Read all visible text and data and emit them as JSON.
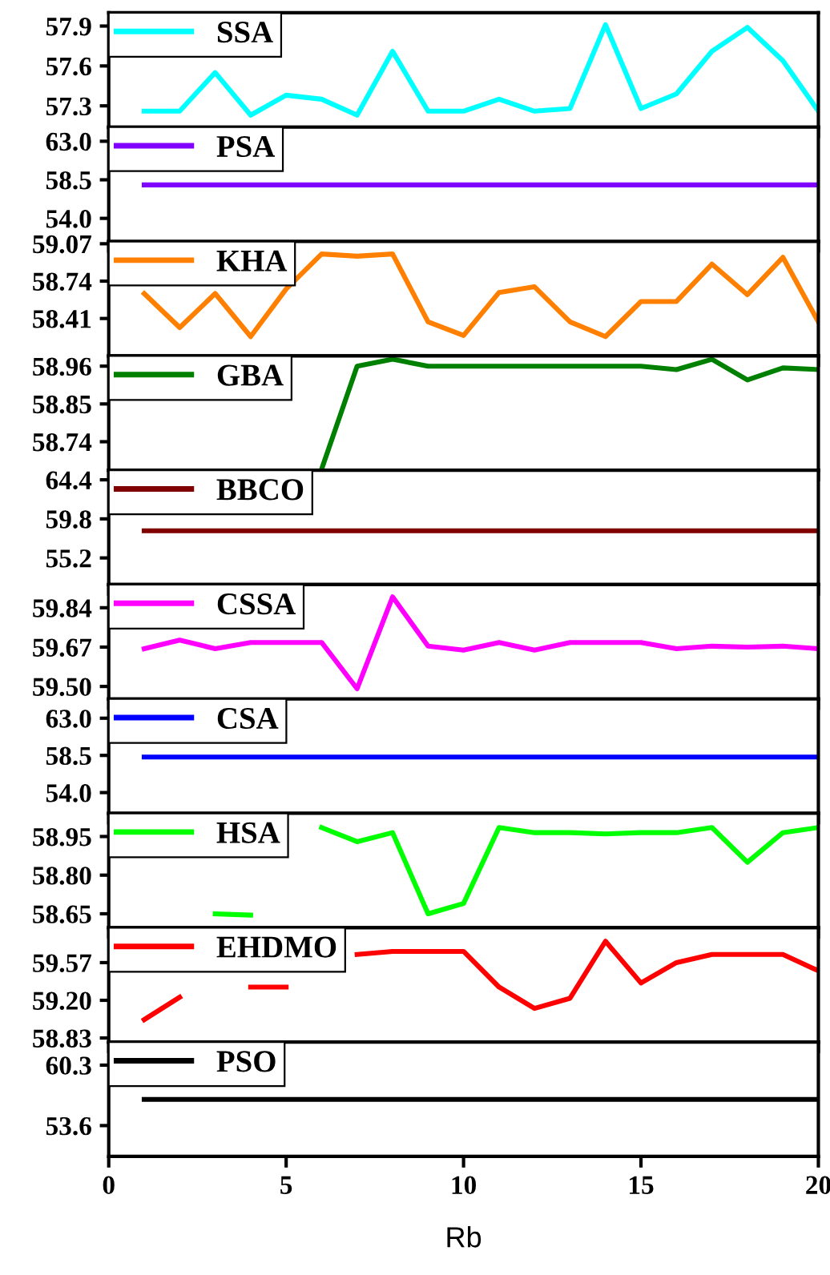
{
  "chart_data": [
    {
      "type": "line",
      "x": [
        1,
        2,
        3,
        4,
        5,
        6,
        7,
        8,
        9,
        10,
        11,
        12,
        13,
        14,
        15,
        16,
        17,
        18,
        19,
        20
      ],
      "xlim": [
        0,
        20
      ],
      "xticks": [
        0,
        5,
        10,
        15,
        20
      ],
      "ylim": [
        57.14,
        58.0
      ],
      "yticks": [
        57.3,
        57.6,
        57.9
      ],
      "tick_labels": "y",
      "legend": "top left",
      "series": [
        {
          "name": "SSA",
          "color": "#00ffff",
          "values": [
            57.26,
            57.26,
            57.55,
            57.23,
            57.38,
            57.35,
            57.23,
            57.71,
            57.26,
            57.26,
            57.35,
            57.26,
            57.28,
            57.91,
            57.28,
            57.39,
            57.71,
            57.89,
            57.64,
            57.26
          ]
        }
      ]
    },
    {
      "type": "line",
      "x": [
        1,
        2,
        3,
        4,
        5,
        6,
        7,
        8,
        9,
        10,
        11,
        12,
        13,
        14,
        15,
        16,
        17,
        18,
        19,
        20
      ],
      "xlim": [
        0,
        20
      ],
      "xticks": [
        0,
        5,
        10,
        15,
        20
      ],
      "ylim": [
        51.3,
        64.65
      ],
      "yticks": [
        {
          "value": 54,
          "label": "54.0"
        },
        58.5,
        {
          "value": 63,
          "label": "63.0"
        }
      ],
      "tick_labels": "y",
      "legend": "top left",
      "series": [
        {
          "name": "PSA",
          "color": "#8000ff",
          "values": [
            57.9,
            57.9,
            57.9,
            57.9,
            57.9,
            57.9,
            57.9,
            57.9,
            57.9,
            57.9,
            57.9,
            57.9,
            57.9,
            57.9,
            57.9,
            57.9,
            57.9,
            57.9,
            57.9,
            57.9
          ]
        }
      ]
    },
    {
      "type": "line",
      "x": [
        1,
        2,
        3,
        4,
        5,
        6,
        7,
        8,
        9,
        10,
        11,
        12,
        13,
        14,
        15,
        16,
        17,
        18,
        19,
        20
      ],
      "xlim": [
        0,
        20
      ],
      "xticks": [
        0,
        5,
        10,
        15,
        20
      ],
      "ylim": [
        58.08,
        59.09
      ],
      "yticks": [
        58.41,
        58.74,
        59.07
      ],
      "tick_labels": "y",
      "legend": "top left",
      "series": [
        {
          "name": "KHA",
          "color": "#ff8000",
          "values": [
            58.63,
            58.33,
            58.63,
            58.25,
            58.67,
            58.98,
            58.96,
            58.98,
            58.38,
            58.26,
            58.64,
            58.69,
            58.38,
            58.25,
            58.56,
            58.56,
            58.89,
            58.62,
            58.95,
            58.38
          ]
        }
      ]
    },
    {
      "type": "line",
      "xlim": [
        0,
        20
      ],
      "xticks": [
        0,
        5,
        10,
        15,
        20
      ],
      "ylim": [
        58.657,
        58.99
      ],
      "yticks": [
        58.74,
        58.85,
        58.96
      ],
      "tick_labels": "y",
      "legend": "top left",
      "series": [
        {
          "name": "GBA",
          "color": "#008000",
          "x": [
            6,
            7,
            8,
            9,
            10,
            11,
            12,
            13,
            14,
            15,
            16,
            17,
            18,
            19,
            20
          ],
          "values": [
            58.66,
            58.96,
            58.98,
            58.96,
            58.96,
            58.96,
            58.96,
            58.96,
            58.96,
            58.96,
            58.95,
            58.98,
            58.92,
            58.955,
            58.95
          ]
        }
      ]
    },
    {
      "type": "line",
      "x": [
        1,
        2,
        3,
        4,
        5,
        6,
        7,
        8,
        9,
        10,
        11,
        12,
        13,
        14,
        15,
        16,
        17,
        18,
        19,
        20
      ],
      "xlim": [
        0,
        20
      ],
      "xticks": [
        0,
        5,
        10,
        15,
        20
      ],
      "ylim": [
        52.06,
        65.53
      ],
      "yticks": [
        55.2,
        59.8,
        64.4
      ],
      "tick_labels": "y",
      "legend": "top left",
      "series": [
        {
          "name": "BBCO",
          "color": "#800000",
          "values": [
            58.4,
            58.4,
            58.4,
            58.4,
            58.4,
            58.4,
            58.4,
            58.4,
            58.4,
            58.4,
            58.4,
            58.4,
            58.4,
            58.4,
            58.4,
            58.4,
            58.4,
            58.4,
            58.4,
            58.4
          ]
        }
      ]
    },
    {
      "type": "line",
      "x": [
        1,
        2,
        3,
        4,
        5,
        6,
        7,
        8,
        9,
        10,
        11,
        12,
        13,
        14,
        15,
        16,
        17,
        18,
        19,
        20
      ],
      "xlim": [
        0,
        20
      ],
      "xticks": [
        0,
        5,
        10,
        15,
        20
      ],
      "ylim": [
        59.446,
        59.94
      ],
      "yticks": [
        {
          "value": 59.5,
          "label": "59.50"
        },
        59.67,
        59.84
      ],
      "tick_labels": "y",
      "legend": "top left",
      "series": [
        {
          "name": "CSSA",
          "color": "#ff00ff",
          "values": [
            59.663,
            59.7,
            59.663,
            59.69,
            59.69,
            59.69,
            59.49,
            59.887,
            59.674,
            59.657,
            59.69,
            59.657,
            59.69,
            59.69,
            59.69,
            59.663,
            59.674,
            59.67,
            59.674,
            59.663
          ]
        }
      ]
    },
    {
      "type": "line",
      "x": [
        1,
        2,
        3,
        4,
        5,
        6,
        7,
        8,
        9,
        10,
        11,
        12,
        13,
        14,
        15,
        16,
        17,
        18,
        19,
        20
      ],
      "xlim": [
        0,
        20
      ],
      "xticks": [
        0,
        5,
        10,
        15,
        20
      ],
      "ylim": [
        51.49,
        65.33
      ],
      "yticks": [
        {
          "value": 54,
          "label": "54.0"
        },
        58.5,
        {
          "value": 63,
          "label": "63.0"
        }
      ],
      "tick_labels": "y",
      "legend": "top left",
      "series": [
        {
          "name": "CSA",
          "color": "#0000ff",
          "values": [
            58.3,
            58.3,
            58.3,
            58.3,
            58.3,
            58.3,
            58.3,
            58.3,
            58.3,
            58.3,
            58.3,
            58.3,
            58.3,
            58.3,
            58.3,
            58.3,
            58.3,
            58.3,
            58.3,
            58.3
          ]
        }
      ]
    },
    {
      "type": "line",
      "xlim": [
        0,
        20
      ],
      "xticks": [
        0,
        5,
        10,
        15,
        20
      ],
      "ylim": [
        58.596,
        59.04
      ],
      "yticks": [
        58.65,
        {
          "value": 58.8,
          "label": "58.80"
        },
        58.95
      ],
      "tick_labels": "y",
      "legend": "top left",
      "series": [
        {
          "name": "HSA",
          "color": "#00ff00",
          "x": [
            3,
            4,
            5,
            6,
            7,
            8,
            9,
            10,
            11,
            12,
            13,
            14,
            15,
            16,
            17,
            18,
            19,
            20
          ],
          "values": [
            58.65,
            58.645,
            null,
            58.985,
            58.93,
            58.965,
            58.65,
            58.69,
            58.985,
            58.965,
            58.965,
            58.96,
            58.965,
            58.965,
            58.985,
            58.85,
            58.965,
            58.985
          ]
        }
      ]
    },
    {
      "type": "line",
      "x": [
        1,
        2,
        3,
        4,
        5,
        6,
        7,
        8,
        9,
        10,
        11,
        12,
        13,
        14,
        15,
        16,
        17,
        18,
        19,
        20
      ],
      "xlim": [
        0,
        20
      ],
      "xticks": [
        0,
        5,
        10,
        15,
        20
      ],
      "ylim": [
        58.79,
        59.913
      ],
      "yticks": [
        58.83,
        {
          "value": 59.2,
          "label": "59.20"
        },
        59.57
      ],
      "tick_labels": "y",
      "legend": "top left",
      "series": [
        {
          "name": "EHDMO",
          "color": "#ff0000",
          "values": [
            59.01,
            59.23,
            null,
            59.33,
            59.33,
            null,
            59.65,
            59.68,
            59.68,
            59.68,
            59.33,
            59.12,
            59.22,
            59.78,
            59.37,
            59.57,
            59.65,
            59.65,
            59.65,
            59.49
          ]
        }
      ]
    },
    {
      "type": "line",
      "x": [
        1,
        2,
        3,
        4,
        5,
        6,
        7,
        8,
        9,
        10,
        11,
        12,
        13,
        14,
        15,
        16,
        17,
        18,
        19,
        20
      ],
      "xlim": [
        0,
        20
      ],
      "xticks": [
        0,
        5,
        10,
        15,
        20
      ],
      "ylim": [
        50.18,
        62.86
      ],
      "yticks": [
        53.6,
        60.3
      ],
      "xlabel": "Rb",
      "legend": "top left",
      "series": [
        {
          "name": "PSO",
          "color": "#000000",
          "values": [
            56.5,
            56.5,
            56.5,
            56.5,
            56.5,
            56.5,
            56.5,
            56.5,
            56.5,
            56.5,
            56.5,
            56.5,
            56.5,
            56.5,
            56.5,
            56.5,
            56.5,
            56.5,
            56.5,
            56.5
          ]
        }
      ]
    }
  ]
}
